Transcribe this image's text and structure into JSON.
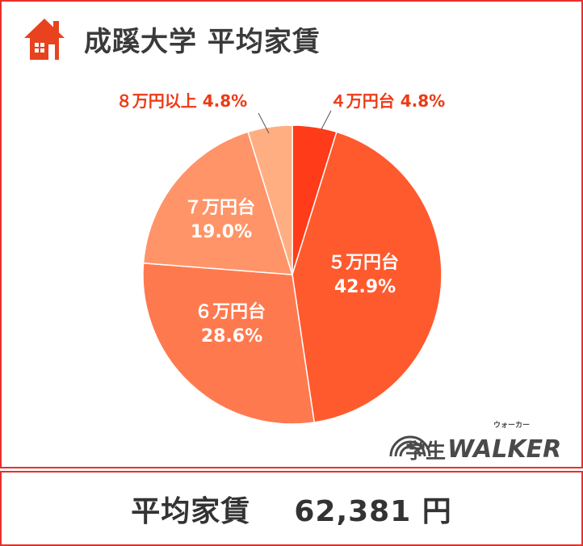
{
  "header": {
    "title": "成蹊大学  平均家賃",
    "icon": "house-icon"
  },
  "footer": {
    "label": "平均家賃",
    "value": "62,381 円"
  },
  "logo": {
    "main": "学生",
    "brand": "WALKER",
    "ruby": "ウォーカー"
  },
  "colors": {
    "accent": "#e8302a",
    "slices": [
      "#ff3b1a",
      "#ff5a2e",
      "#ff794f",
      "#ff9468",
      "#ffae82"
    ],
    "callout": "#ee3a16"
  },
  "chart_data": {
    "type": "pie",
    "start_angle_deg": 0,
    "direction": "clockwise",
    "slices": [
      {
        "label": "４万円台",
        "value": 4.8,
        "display": "4.8%"
      },
      {
        "label": "５万円台",
        "value": 42.9,
        "display": "42.9%"
      },
      {
        "label": "６万円台",
        "value": 28.6,
        "display": "28.6%"
      },
      {
        "label": "７万円台",
        "value": 19.0,
        "display": "19.0%"
      },
      {
        "label": "８万円以上",
        "value": 4.8,
        "display": "4.8%"
      }
    ]
  }
}
